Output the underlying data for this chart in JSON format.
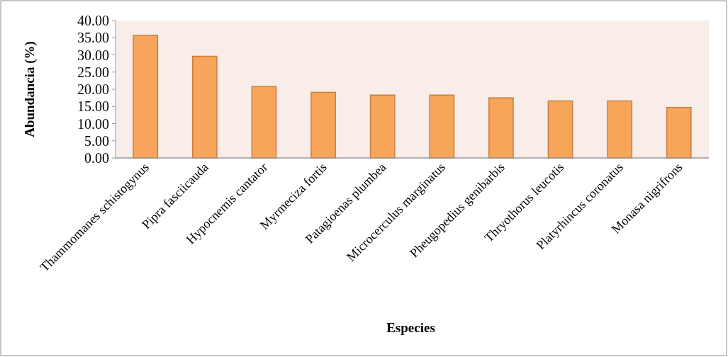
{
  "chart_data": {
    "type": "bar",
    "xlabel": "Especies",
    "ylabel": "Abundancia (%)",
    "categories": [
      "Thammomanes schistogynus",
      "Pipra fasciicauda",
      "Hypocnemis cantator",
      "Myrmeciza fortis",
      "Patagioenas plumbea",
      "Microcerculus marginatus",
      "Pheugopedius genibarbis",
      "Thryothorus leucotis",
      "Platyrhincus coronatus",
      "Monasa nigrifrons"
    ],
    "values": [
      35.7,
      29.6,
      20.8,
      19.1,
      18.3,
      18.3,
      17.5,
      16.6,
      16.6,
      14.7
    ],
    "color": "#f7a55a",
    "ylim": [
      0,
      40
    ],
    "yticks": [
      {
        "value": 0,
        "label": "0.00"
      },
      {
        "value": 5,
        "label": "5.00"
      },
      {
        "value": 10,
        "label": "10.00"
      },
      {
        "value": 15,
        "label": "15.00"
      },
      {
        "value": 20,
        "label": "20.00"
      },
      {
        "value": 25,
        "label": "25.00"
      },
      {
        "value": 30,
        "label": "30.00"
      },
      {
        "value": 35,
        "label": "35.00"
      },
      {
        "value": 40,
        "label": "40.00"
      }
    ],
    "grid": false
  }
}
